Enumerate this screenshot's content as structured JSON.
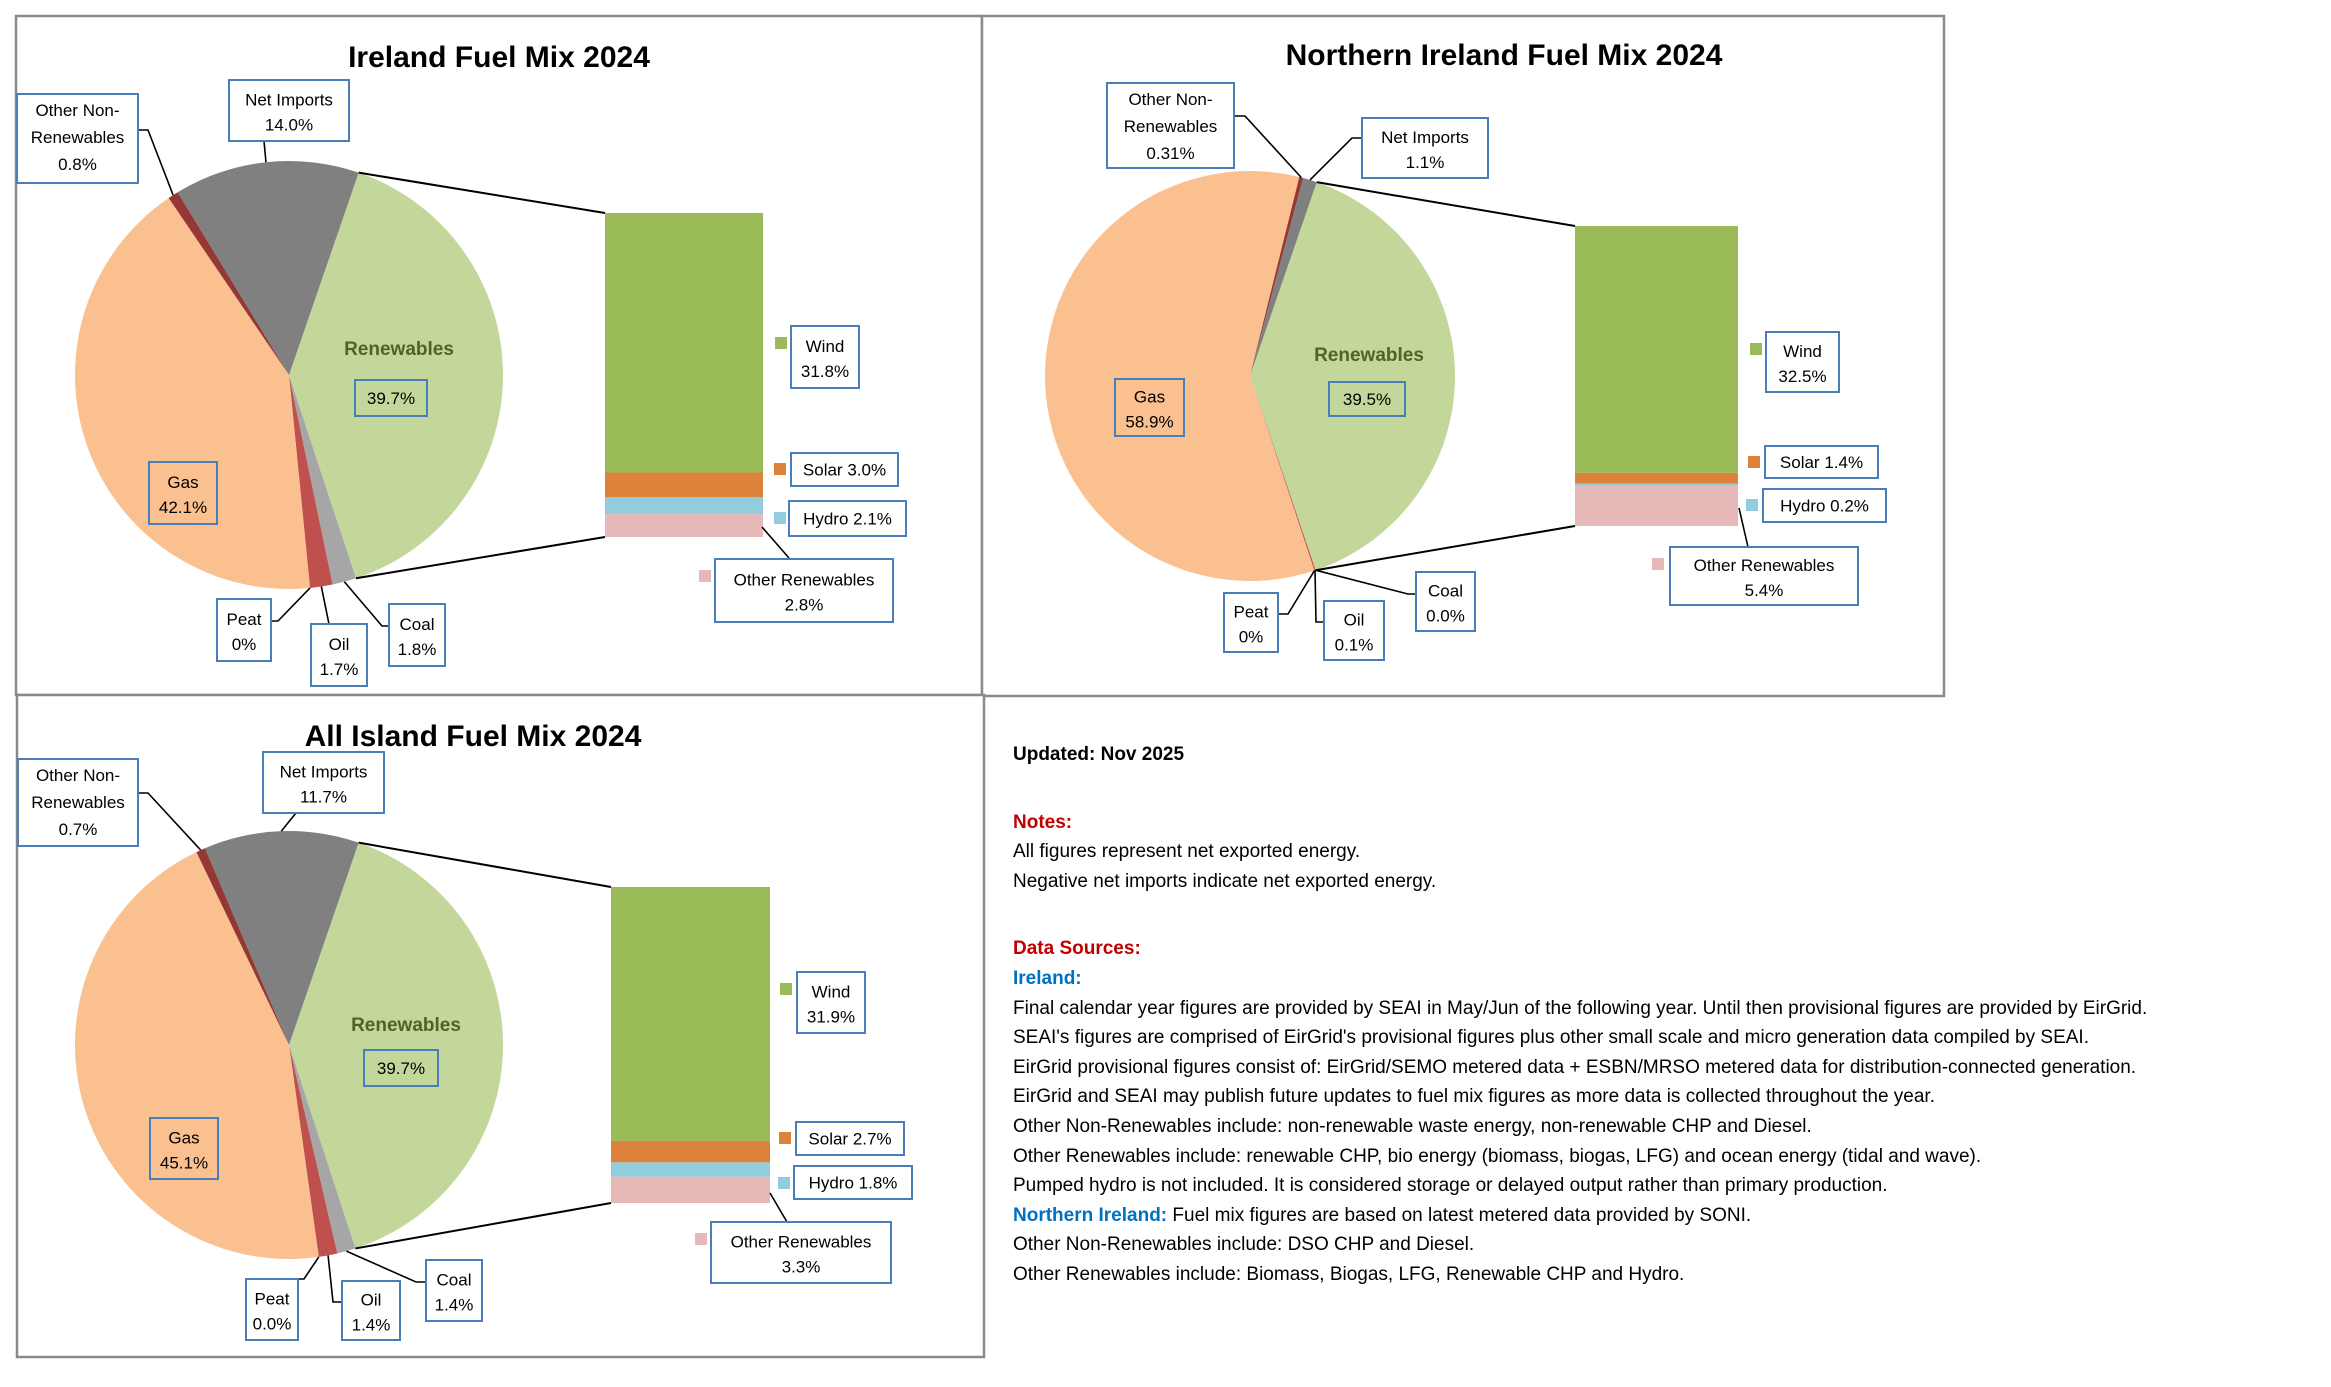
{
  "chart_data": [
    {
      "type": "pie",
      "subtype": "bar-of-pie",
      "title": "Ireland Fuel Mix 2024",
      "unit": "%",
      "slices": [
        {
          "key": "renewables",
          "label": "Renewables",
          "value": 39.7,
          "display": "39.7%",
          "color": "#c4d79b"
        },
        {
          "key": "coal",
          "label": "Coal",
          "value": 1.8,
          "display": "1.8%",
          "color": "#a6a6a6"
        },
        {
          "key": "oil",
          "label": "Oil",
          "value": 1.7,
          "display": "1.7%",
          "color": "#c0504d"
        },
        {
          "key": "peat",
          "label": "Peat",
          "value": 0,
          "display": "0%",
          "color": "#7f6000"
        },
        {
          "key": "gas",
          "label": "Gas",
          "value": 42.1,
          "display": "42.1%",
          "color": "#fac090"
        },
        {
          "key": "onr",
          "label": "Other Non-Renewables",
          "value": 0.8,
          "display": "0.8%",
          "color": "#953735"
        },
        {
          "key": "imports",
          "label": "Net Imports",
          "value": 14.0,
          "display": "14.0%",
          "color": "#808080"
        }
      ],
      "breakdown_of": "renewables",
      "breakdown": [
        {
          "key": "wind",
          "label": "Wind",
          "value": 31.8,
          "display": "31.8%",
          "color": "#9bbb59"
        },
        {
          "key": "solar",
          "label": "Solar",
          "value": 3.0,
          "display": "3.0%",
          "color": "#dd823b"
        },
        {
          "key": "hydro",
          "label": "Hydro",
          "value": 2.1,
          "display": "2.1%",
          "color": "#93cddd"
        },
        {
          "key": "otherren",
          "label": "Other Renewables",
          "value": 2.8,
          "display": "2.8%",
          "color": "#e6b9b8"
        }
      ]
    },
    {
      "type": "pie",
      "subtype": "bar-of-pie",
      "title": "Northern Ireland Fuel Mix 2024",
      "unit": "%",
      "slices": [
        {
          "key": "renewables",
          "label": "Renewables",
          "value": 39.5,
          "display": "39.5%",
          "color": "#c4d79b"
        },
        {
          "key": "coal",
          "label": "Coal",
          "value": 0.0,
          "display": "0.0%",
          "color": "#a6a6a6"
        },
        {
          "key": "oil",
          "label": "Oil",
          "value": 0.1,
          "display": "0.1%",
          "color": "#c0504d"
        },
        {
          "key": "peat",
          "label": "Peat",
          "value": 0,
          "display": "0%",
          "color": "#7f6000"
        },
        {
          "key": "gas",
          "label": "Gas",
          "value": 58.9,
          "display": "58.9%",
          "color": "#fac090"
        },
        {
          "key": "onr",
          "label": "Other Non-Renewables",
          "value": 0.31,
          "display": "0.31%",
          "color": "#953735"
        },
        {
          "key": "imports",
          "label": "Net Imports",
          "value": 1.1,
          "display": "1.1%",
          "color": "#808080"
        }
      ],
      "breakdown_of": "renewables",
      "breakdown": [
        {
          "key": "wind",
          "label": "Wind",
          "value": 32.5,
          "display": "32.5%",
          "color": "#9bbb59"
        },
        {
          "key": "solar",
          "label": "Solar",
          "value": 1.4,
          "display": "1.4%",
          "color": "#dd823b"
        },
        {
          "key": "hydro",
          "label": "Hydro",
          "value": 0.2,
          "display": "0.2%",
          "color": "#93cddd"
        },
        {
          "key": "otherren",
          "label": "Other Renewables",
          "value": 5.4,
          "display": "5.4%",
          "color": "#e6b9b8"
        }
      ]
    },
    {
      "type": "pie",
      "subtype": "bar-of-pie",
      "title": "All Island Fuel Mix 2024",
      "unit": "%",
      "slices": [
        {
          "key": "renewables",
          "label": "Renewables",
          "value": 39.7,
          "display": "39.7%",
          "color": "#c4d79b"
        },
        {
          "key": "coal",
          "label": "Coal",
          "value": 1.4,
          "display": "1.4%",
          "color": "#a6a6a6"
        },
        {
          "key": "oil",
          "label": "Oil",
          "value": 1.4,
          "display": "1.4%",
          "color": "#c0504d"
        },
        {
          "key": "peat",
          "label": "Peat",
          "value": 0.0,
          "display": "0.0%",
          "color": "#7f6000"
        },
        {
          "key": "gas",
          "label": "Gas",
          "value": 45.1,
          "display": "45.1%",
          "color": "#fac090"
        },
        {
          "key": "onr",
          "label": "Other Non-Renewables",
          "value": 0.7,
          "display": "0.7%",
          "color": "#953735"
        },
        {
          "key": "imports",
          "label": "Net Imports",
          "value": 11.7,
          "display": "11.7%",
          "color": "#808080"
        }
      ],
      "breakdown_of": "renewables",
      "breakdown": [
        {
          "key": "wind",
          "label": "Wind",
          "value": 31.9,
          "display": "31.9%",
          "color": "#9bbb59"
        },
        {
          "key": "solar",
          "label": "Solar",
          "value": 2.7,
          "display": "2.7%",
          "color": "#dd823b"
        },
        {
          "key": "hydro",
          "label": "Hydro",
          "value": 1.8,
          "display": "1.8%",
          "color": "#93cddd"
        },
        {
          "key": "otherren",
          "label": "Other Renewables",
          "value": 3.3,
          "display": "3.3%",
          "color": "#e6b9b8"
        }
      ]
    }
  ],
  "colors": {
    "label_border": "#4a7ebb",
    "renewables_label": "#4f6228",
    "notes_heading": "#c00000",
    "notes_region": "#0070c0"
  },
  "notes": {
    "updated": "Updated: Nov 2025",
    "notes_heading": "Notes:",
    "notes_lines": [
      "All figures represent net exported energy.",
      "Negative net imports indicate net exported energy."
    ],
    "sources_heading": "Data Sources:",
    "ireland_heading": "Ireland:",
    "ireland_lines": [
      "Final calendar year figures are provided by SEAI in May/Jun of the following year. Until then provisional figures are provided by EirGrid.",
      "SEAI's figures are comprised of EirGrid's provisional figures plus other small scale and micro generation data compiled by SEAI.",
      "EirGrid provisional figures consist of: EirGrid/SEMO metered data + ESBN/MRSO metered data for distribution-connected generation.",
      "EirGrid and SEAI may publish future updates to fuel mix figures as more data is collected throughout the year.",
      "Other Non-Renewables include: non-renewable waste energy, non-renewable CHP and Diesel.",
      "Other Renewables include: renewable CHP, bio energy (biomass, biogas, LFG) and ocean energy (tidal and wave).",
      "Pumped hydro is not included. It is considered storage or delayed output rather than primary production."
    ],
    "ni_heading": "Northern Ireland:",
    "ni_first_line": " Fuel mix figures are based on latest metered data provided by SONI.",
    "ni_lines": [
      "Other Non-Renewables include: DSO CHP and Diesel.",
      "Other Renewables include: Biomass, Biogas, LFG, Renewable CHP and Hydro."
    ]
  }
}
